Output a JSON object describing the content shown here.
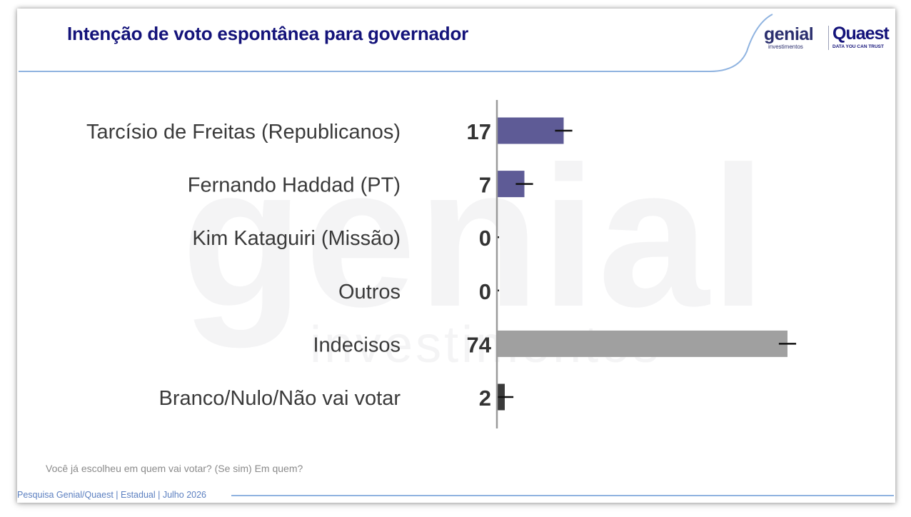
{
  "header": {
    "title": "Intenção de voto espontânea para governador"
  },
  "logo": {
    "genial": "genial",
    "investimentos": "investimentos",
    "quaest": "Quaest",
    "tagline": "DATA YOU CAN TRUST"
  },
  "watermark": {
    "main": "genial",
    "sub": "investimentos"
  },
  "colors": {
    "title": "#14137a",
    "candidate_bar": "#5e5b96",
    "undecided_bar": "#a0a0a0",
    "blank_bar": "#3a3a3a",
    "accent_line": "#8fb3e0"
  },
  "chart_data": {
    "type": "bar",
    "orientation": "horizontal",
    "categories": [
      "Tarcísio de Freitas (Republicanos)",
      "Fernando Haddad (PT)",
      "Kim Kataguiri (Missão)",
      "Outros",
      "Indecisos",
      "Branco/Nulo/Não vai votar"
    ],
    "values": [
      17,
      7,
      0,
      0,
      74,
      2
    ],
    "value_labels": [
      "17",
      "7",
      "0",
      "0",
      "74",
      "2"
    ],
    "bar_colors": [
      "#5e5b96",
      "#5e5b96",
      "#5e5b96",
      "#5e5b96",
      "#a0a0a0",
      "#3a3a3a"
    ],
    "error_bars": true,
    "xlim": [
      0,
      80
    ],
    "grid": false
  },
  "question": "Você já escolheu em quem vai votar? (Se sim) Em quem?",
  "footer": "Pesquisa Genial/Quaest | Estadual | Julho 2026"
}
